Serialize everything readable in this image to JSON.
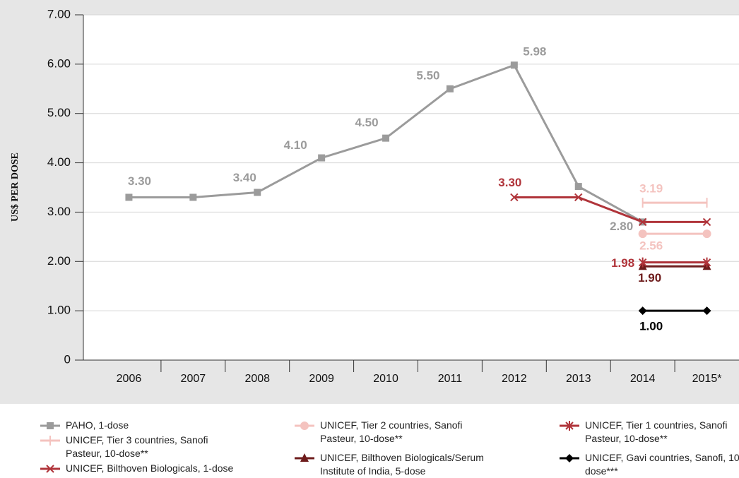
{
  "chart_data": {
    "type": "line",
    "y_label": "US$ PER DOSE",
    "categories": [
      "2006",
      "2007",
      "2008",
      "2009",
      "2010",
      "2011",
      "2012",
      "2013",
      "2014",
      "2015*"
    ],
    "ylim": [
      0,
      7
    ],
    "yticks": [
      0,
      {
        "value": 1,
        "label": "1.00"
      },
      {
        "value": 2,
        "label": "2.00"
      },
      {
        "value": 3,
        "label": "3.00"
      },
      {
        "value": 4,
        "label": "4.00"
      },
      {
        "value": 5,
        "label": "5.00"
      },
      {
        "value": 6,
        "label": "6.00"
      },
      {
        "value": 7,
        "label": "7.00"
      }
    ],
    "grid": true,
    "series": [
      {
        "name": "PAHO, 1-dose",
        "color": "#9b9b9b",
        "marker": "square",
        "values": [
          3.3,
          3.3,
          3.4,
          4.1,
          4.5,
          5.5,
          5.98,
          3.52,
          2.8,
          null
        ],
        "value_labels": [
          "3.30",
          null,
          "3.40",
          "4.10",
          "4.50",
          "5.50",
          "5.98",
          null,
          "2.80",
          null
        ]
      },
      {
        "name": "UNICEF, Tier 3 countries, Sanofi Pasteur, 10-dose**",
        "color": "#f4c3bf",
        "marker": "bar",
        "values": [
          null,
          null,
          null,
          null,
          null,
          null,
          null,
          null,
          3.19,
          3.19
        ],
        "value_labels": [
          null,
          null,
          null,
          null,
          null,
          null,
          null,
          null,
          "3.19",
          null
        ]
      },
      {
        "name": "UNICEF, Bilthoven Biologicals, 1-dose",
        "color": "#b0343a",
        "marker": "x",
        "values": [
          null,
          null,
          null,
          null,
          null,
          null,
          3.3,
          3.3,
          2.8,
          2.8
        ],
        "value_labels": [
          null,
          null,
          null,
          null,
          null,
          null,
          "3.30",
          null,
          null,
          null
        ]
      },
      {
        "name": "UNICEF, Tier 2 countries, Sanofi Pasteur, 10-dose**",
        "color": "#f4c3bf",
        "marker": "circle",
        "values": [
          null,
          null,
          null,
          null,
          null,
          null,
          null,
          null,
          2.56,
          2.56
        ],
        "value_labels": [
          null,
          null,
          null,
          null,
          null,
          null,
          null,
          null,
          "2.56",
          null
        ]
      },
      {
        "name": "UNICEF, Bilthoven Biologicals/Serum Institute of India, 5-dose",
        "color": "#6e1c1c",
        "marker": "triangle",
        "values": [
          null,
          null,
          null,
          null,
          null,
          null,
          null,
          null,
          1.9,
          1.9
        ],
        "value_labels": [
          null,
          null,
          null,
          null,
          null,
          null,
          null,
          null,
          "1.90",
          null
        ]
      },
      {
        "name": "UNICEF, Tier 1 countries, Sanofi Pasteur, 10-dose**",
        "color": "#b0343a",
        "marker": "asterisk",
        "values": [
          null,
          null,
          null,
          null,
          null,
          null,
          null,
          null,
          1.98,
          1.98
        ],
        "value_labels": [
          null,
          null,
          null,
          null,
          null,
          null,
          null,
          null,
          "1.98",
          null
        ]
      },
      {
        "name": "UNICEF, Gavi countries, Sanofi, 10-dose***",
        "color": "#000000",
        "marker": "diamond",
        "values": [
          null,
          null,
          null,
          null,
          null,
          null,
          null,
          null,
          1.0,
          1.0
        ],
        "value_labels": [
          null,
          null,
          null,
          null,
          null,
          null,
          null,
          null,
          "1.00",
          null
        ]
      }
    ]
  }
}
